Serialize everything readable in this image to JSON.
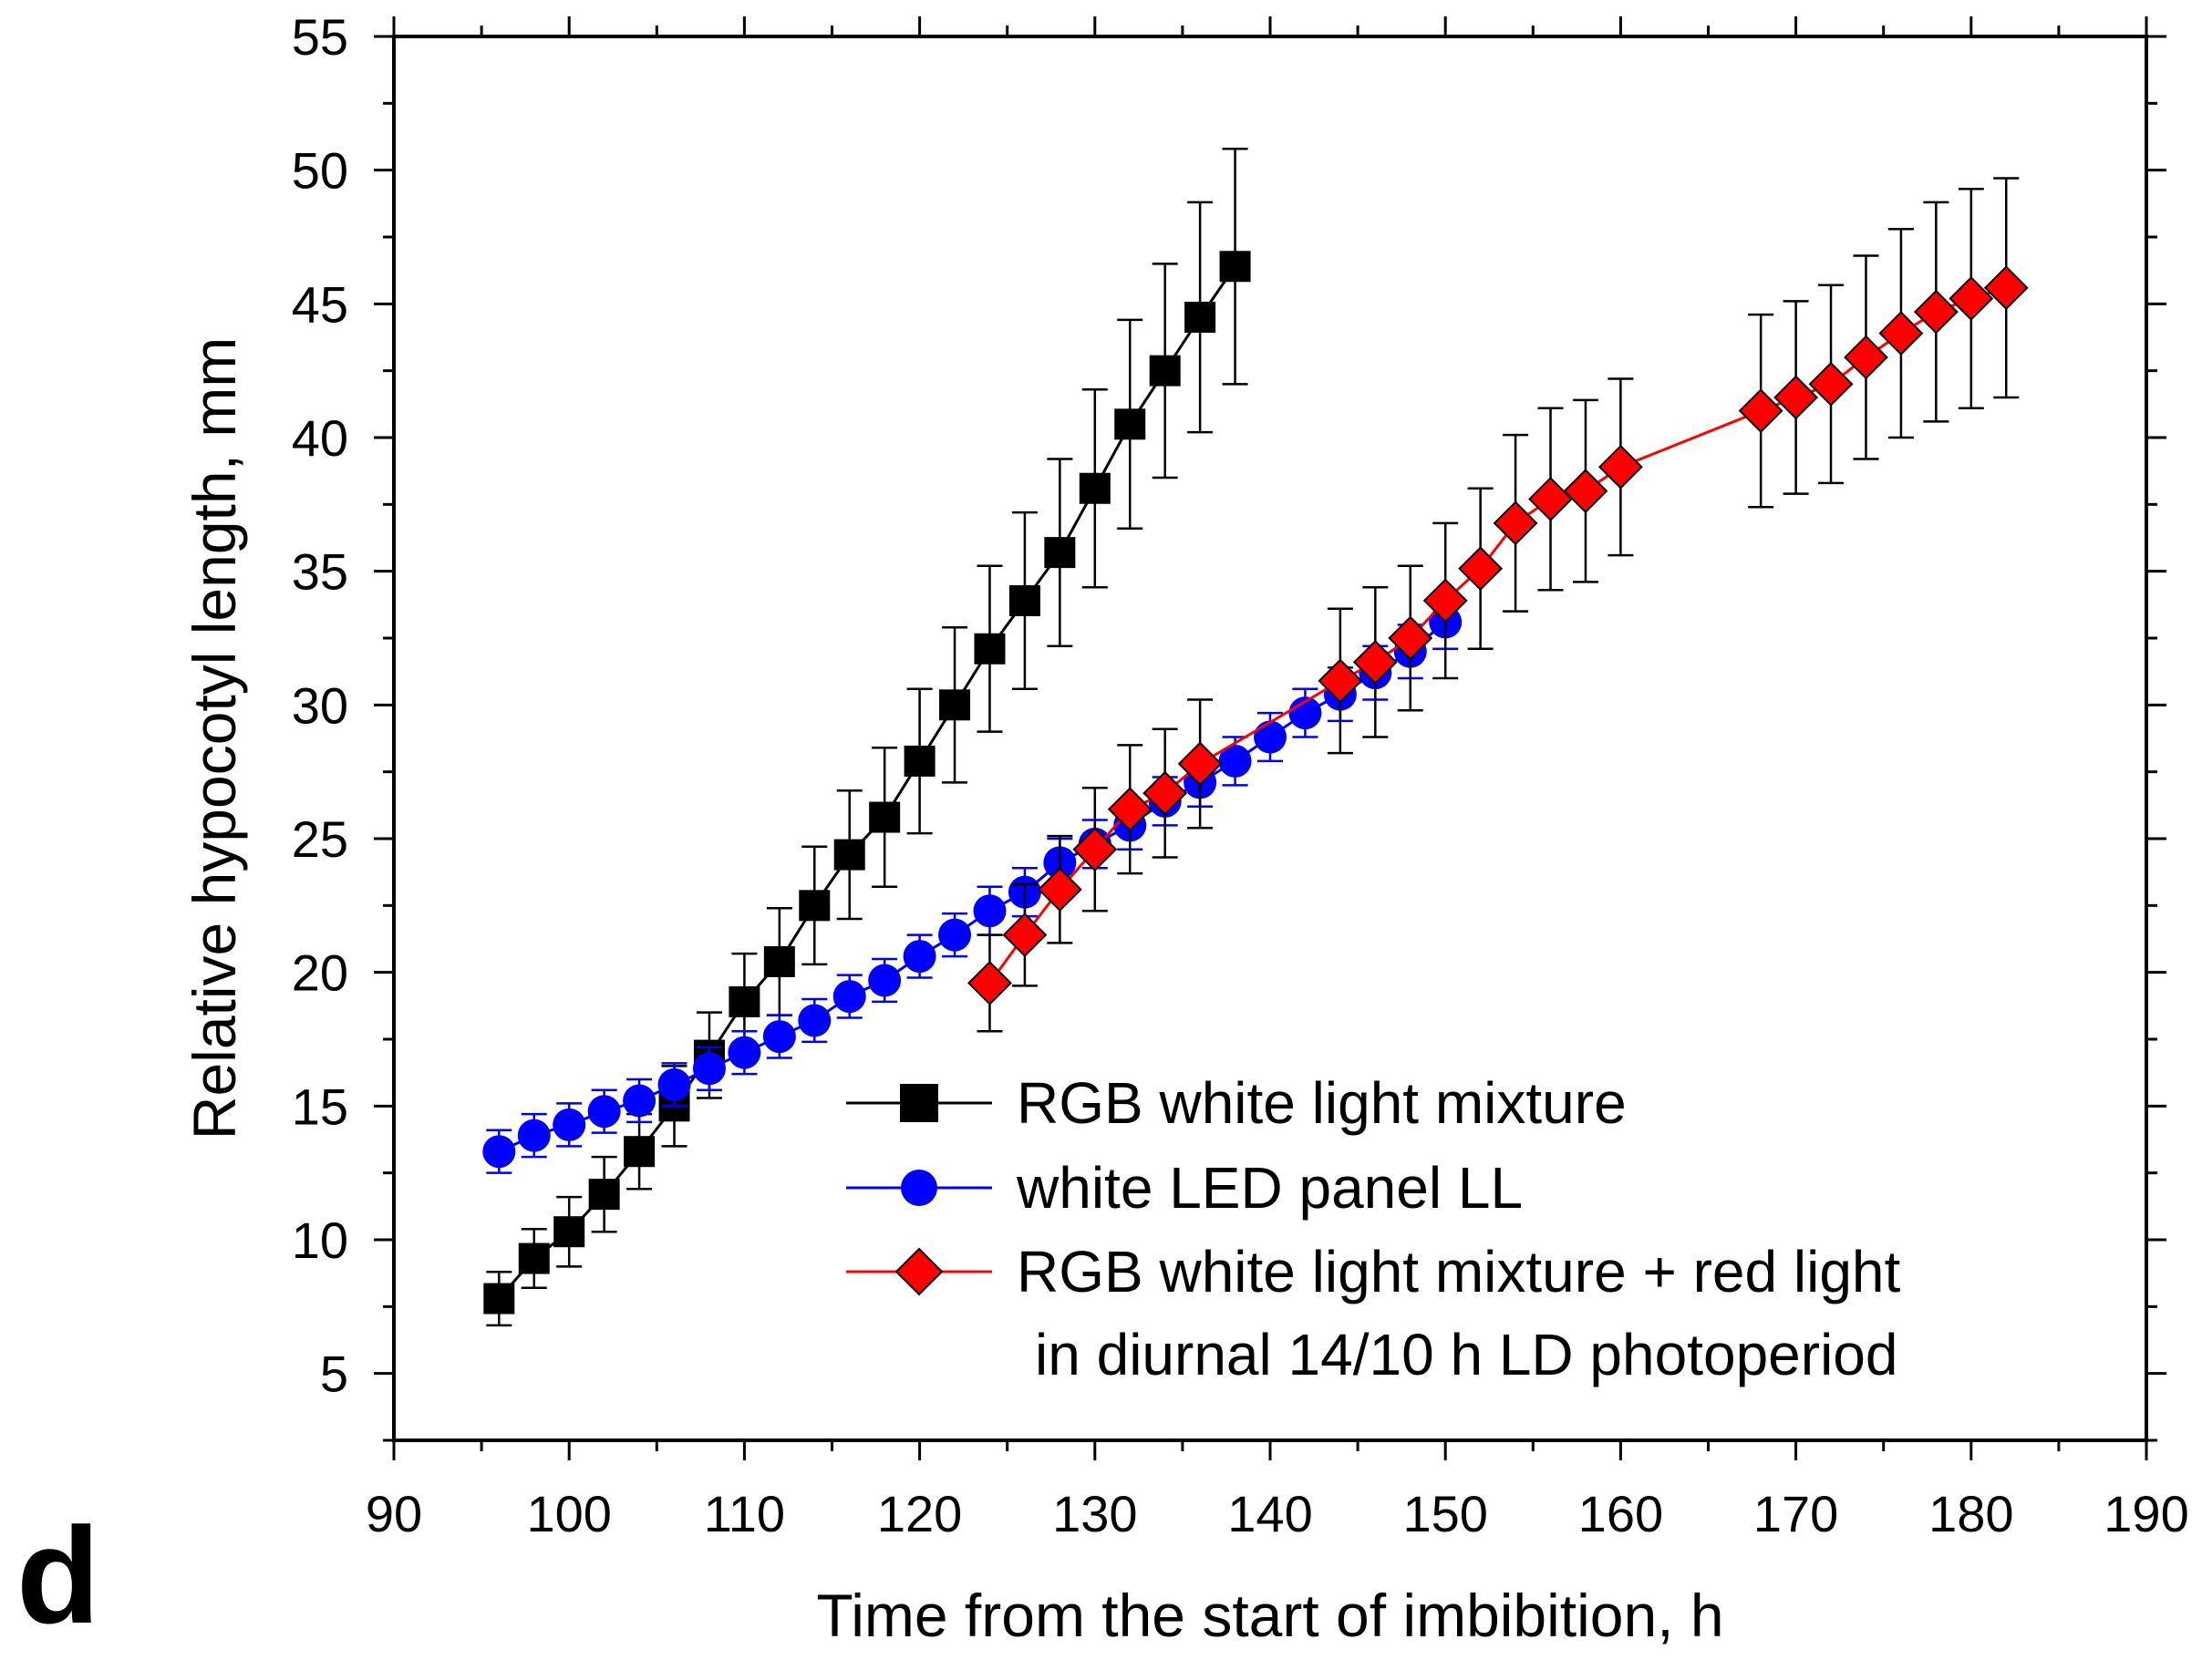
{
  "panel_label": "d",
  "chart_data": {
    "type": "line",
    "xlabel": "Time from the start of imbibition, h",
    "ylabel": "Relative hypocotyl length, mm",
    "xlim": [
      90,
      190
    ],
    "ylim": [
      2.5,
      55
    ],
    "x_ticks": [
      90,
      100,
      110,
      120,
      130,
      140,
      150,
      160,
      170,
      180,
      190
    ],
    "y_ticks": [
      5,
      10,
      15,
      20,
      25,
      30,
      35,
      40,
      45,
      50,
      55
    ],
    "x_minor_step": 5,
    "y_minor_step": 2.5,
    "legend": {
      "position": "bottom-right",
      "entries": [
        {
          "label": "RGB white light mixture"
        },
        {
          "label": "white LED panel LL"
        },
        {
          "label": "RGB white light mixture + red light",
          "label_line2": "in diurnal 14/10 h LD photoperiod"
        }
      ]
    },
    "series": [
      {
        "name": "RGB white light mixture",
        "color": "#000000",
        "marker_fill": "#000000",
        "marker": "square",
        "x": [
          96,
          98,
          100,
          102,
          104,
          106,
          108,
          110,
          112,
          114,
          116,
          118,
          120,
          122,
          124,
          126,
          128,
          130,
          132,
          134,
          136,
          138
        ],
        "y": [
          7.8,
          9.3,
          10.3,
          11.7,
          13.3,
          15.0,
          16.9,
          18.9,
          20.4,
          22.5,
          24.4,
          25.8,
          27.9,
          30.0,
          32.1,
          33.9,
          35.7,
          38.1,
          40.5,
          42.5,
          44.5,
          46.4
        ],
        "err": [
          1.0,
          1.1,
          1.3,
          1.4,
          1.4,
          1.5,
          1.6,
          1.8,
          2.0,
          2.2,
          2.4,
          2.6,
          2.7,
          2.9,
          3.1,
          3.3,
          3.5,
          3.7,
          3.9,
          4.0,
          4.3,
          4.4
        ]
      },
      {
        "name": "white LED panel LL",
        "color": "#0000ee",
        "marker_fill": "#0000ff",
        "marker": "circle",
        "x": [
          96,
          98,
          100,
          102,
          104,
          106,
          108,
          110,
          112,
          114,
          116,
          118,
          120,
          122,
          124,
          126,
          128,
          130,
          132,
          134,
          136,
          138,
          140,
          142,
          144,
          146,
          148,
          150
        ],
        "y": [
          13.3,
          13.9,
          14.3,
          14.8,
          15.2,
          15.8,
          16.4,
          17.0,
          17.6,
          18.2,
          19.1,
          19.7,
          20.6,
          21.4,
          22.3,
          23.0,
          24.1,
          24.8,
          25.5,
          26.4,
          27.1,
          27.9,
          28.8,
          29.7,
          30.4,
          31.2,
          32.0,
          33.1
        ],
        "err": [
          0.8,
          0.8,
          0.8,
          0.8,
          0.8,
          0.8,
          0.8,
          0.8,
          0.8,
          0.8,
          0.8,
          0.8,
          0.8,
          0.8,
          0.9,
          0.9,
          0.9,
          0.9,
          0.9,
          0.9,
          0.9,
          0.9,
          0.9,
          0.9,
          1.0,
          1.0,
          1.0,
          1.0
        ]
      },
      {
        "name": "RGB white light mixture + red light in diurnal 14/10 h LD photoperiod",
        "color": "#ff0000",
        "marker_fill": "#ff0000",
        "marker": "diamond",
        "x": [
          124,
          126,
          128,
          130,
          132,
          134,
          136,
          144,
          146,
          148,
          150,
          152,
          154,
          156,
          158,
          160,
          168,
          170,
          172,
          174,
          176,
          178,
          180,
          182
        ],
        "y": [
          19.6,
          21.4,
          23.1,
          24.6,
          26.1,
          26.7,
          27.8,
          30.9,
          31.6,
          32.5,
          33.9,
          35.1,
          36.8,
          37.7,
          38.0,
          38.9,
          41.0,
          41.5,
          42.0,
          43.0,
          43.9,
          44.7,
          45.2,
          45.6
        ],
        "err": [
          1.8,
          1.9,
          2.0,
          2.3,
          2.4,
          2.4,
          2.4,
          2.7,
          2.8,
          2.7,
          2.9,
          3.0,
          3.3,
          3.4,
          3.4,
          3.3,
          3.6,
          3.6,
          3.7,
          3.8,
          3.9,
          4.1,
          4.1,
          4.1
        ]
      }
    ]
  }
}
